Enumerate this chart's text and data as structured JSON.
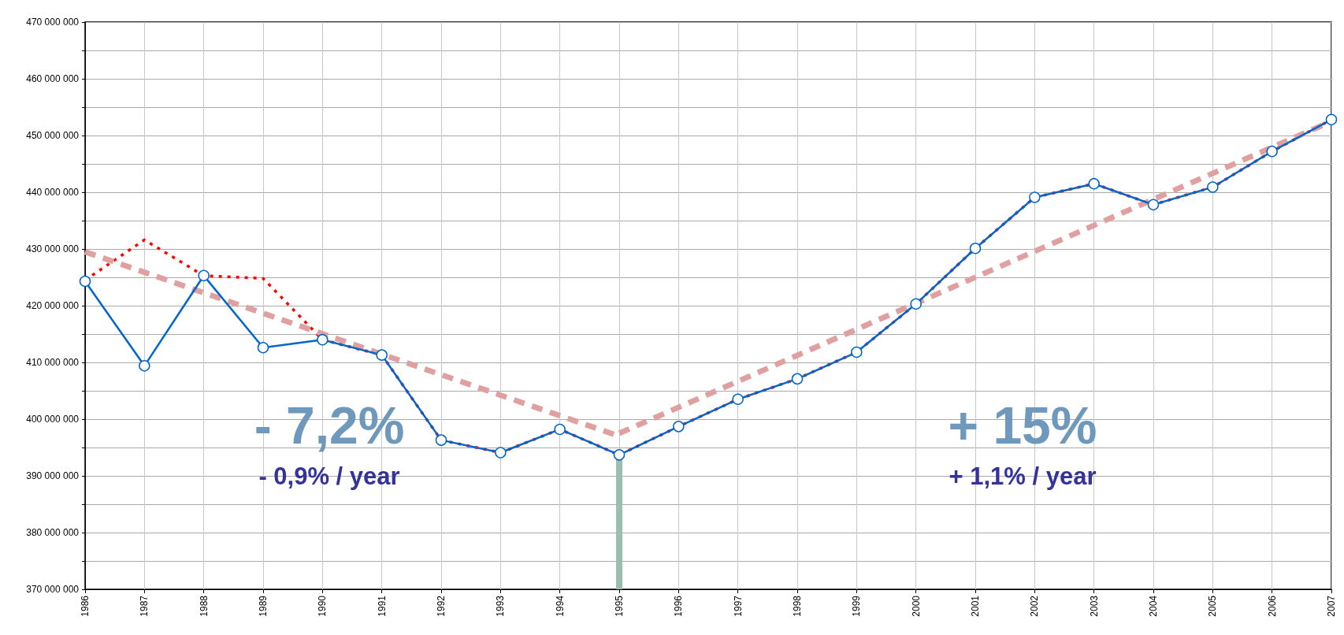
{
  "chart_data": {
    "type": "line",
    "x": [
      1986,
      1987,
      1988,
      1989,
      1990,
      1991,
      1992,
      1993,
      1994,
      1995,
      1996,
      1997,
      1998,
      1999,
      2000,
      2001,
      2002,
      2003,
      2004,
      2005,
      2006,
      2007
    ],
    "series": [
      {
        "color": "#ff0000",
        "line_style": "dotted",
        "marker": "none",
        "values": [
          424500000.0,
          431600000.0,
          425300000.0,
          424800000.0,
          414000000.0,
          411300000.0,
          396300000.0,
          394100000.0,
          398200000.0,
          393700000.0,
          398700000.0,
          403500000.0,
          407100000.0,
          411800000.0,
          420300000.0,
          430100000.0,
          439100000.0,
          441500000.0,
          437800000.0,
          440900000.0,
          447200000.0,
          452800000.0
        ]
      },
      {
        "color": "#0066cc",
        "line_style": "solid",
        "marker": "circle",
        "values": [
          424300000.0,
          409400000.0,
          425300000.0,
          412600000.0,
          414000000.0,
          411300000.0,
          396300000.0,
          394100000.0,
          398200000.0,
          393700000.0,
          398700000.0,
          403500000.0,
          407100000.0,
          411800000.0,
          420300000.0,
          430100000.0,
          439100000.0,
          441500000.0,
          437800000.0,
          440900000.0,
          447200000.0,
          452800000.0
        ]
      },
      {
        "color": "#e0a0a0",
        "line_style": "dashed",
        "marker": "none",
        "x": [
          1986,
          1995
        ],
        "values": [
          429500000.0,
          397000000.0
        ]
      },
      {
        "color": "#e0a0a0",
        "line_style": "dashed",
        "marker": "none",
        "x": [
          1995,
          2007
        ],
        "values": [
          397500000.0,
          452500000.0
        ]
      }
    ],
    "xlim": [
      1986,
      2007
    ],
    "xticks": [
      1986,
      1987,
      1988,
      1989,
      1990,
      1991,
      1992,
      1993,
      1994,
      1995,
      1996,
      1997,
      1998,
      1999,
      2000,
      2001,
      2002,
      2003,
      2004,
      2005,
      2006,
      2007
    ],
    "ylim": [
      370000000,
      470000000
    ],
    "yticks": [
      {
        "value": 370000000,
        "label": "370 000 000"
      },
      {
        "value": 375000000,
        "label": null
      },
      {
        "value": 380000000,
        "label": "380 000 000"
      },
      {
        "value": 385000000,
        "label": null
      },
      {
        "value": 390000000,
        "label": "390 000 000"
      },
      {
        "value": 395000000,
        "label": null
      },
      {
        "value": 400000000,
        "label": "400 000 000"
      },
      {
        "value": 405000000,
        "label": null
      },
      {
        "value": 410000000,
        "label": "410 000 000"
      },
      {
        "value": 415000000,
        "label": null
      },
      {
        "value": 420000000,
        "label": "420 000 000"
      },
      {
        "value": 425000000,
        "label": null
      },
      {
        "value": 430000000,
        "label": "430 000 000"
      },
      {
        "value": 435000000,
        "label": null
      },
      {
        "value": 440000000,
        "label": "440 000 000"
      },
      {
        "value": 445000000,
        "label": null
      },
      {
        "value": 450000000,
        "label": "450 000 000"
      },
      {
        "value": 455000000,
        "label": null
      },
      {
        "value": 460000000,
        "label": "460 000 000"
      },
      {
        "value": 465000000,
        "label": null
      },
      {
        "value": 470000000,
        "label": "470 000 000"
      }
    ],
    "ref_lines": [
      {
        "axis": "x",
        "value": 1995,
        "color": "#9bbfae"
      }
    ],
    "annotations": [
      "- 7,2%",
      "- 0,9% / year",
      "+ 15%",
      "+ 1,1% / year"
    ],
    "grid": true
  }
}
